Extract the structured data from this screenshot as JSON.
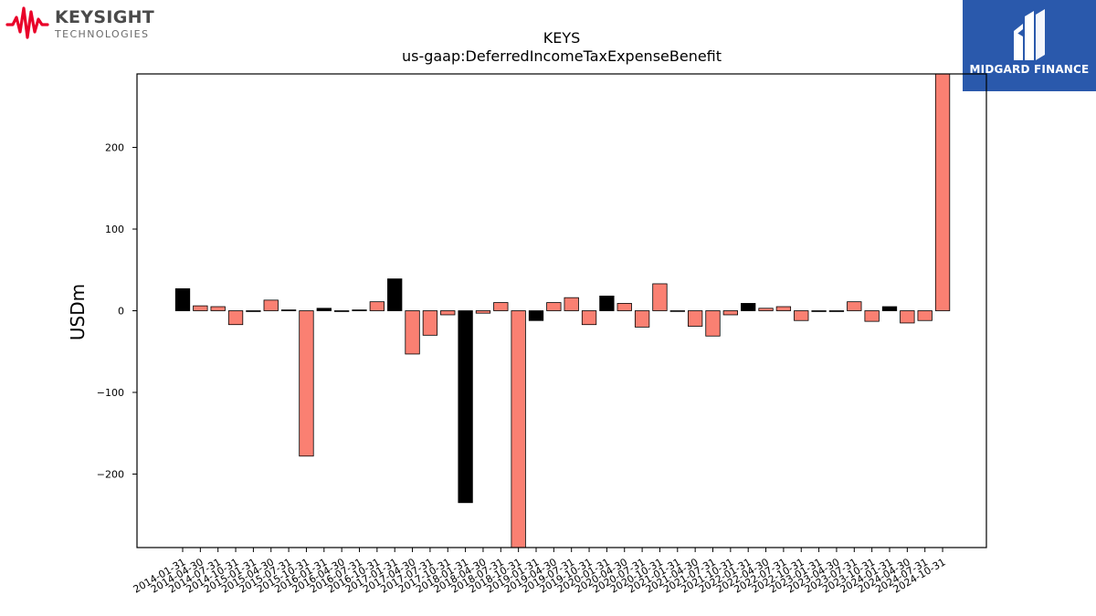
{
  "header": {
    "left_logo": {
      "brand": "KEYSIGHT",
      "sub": "TECHNOLOGIES",
      "accent": "#e90029"
    },
    "right_logo": {
      "name": "MIDGARD FINANCE",
      "background": "#2a59ac"
    }
  },
  "chart_data": {
    "type": "bar",
    "title": "KEYS",
    "subtitle": "us-gaap:DeferredIncomeTaxExpenseBenefit",
    "ylabel": "USDm",
    "xlabel": "",
    "ylim": [
      -290,
      290
    ],
    "yticks": [
      -200,
      -100,
      0,
      100,
      200
    ],
    "ytick_labels": [
      "−200",
      "−100",
      "0",
      "100",
      "200"
    ],
    "grid": false,
    "legend": "none",
    "colors": {
      "salmon": "#fa8072",
      "black": "#000000"
    },
    "categories": [
      "2014-01-31",
      "2014-04-30",
      "2014-07-31",
      "2014-10-31",
      "2015-01-31",
      "2015-04-30",
      "2015-07-31",
      "2015-10-31",
      "2016-01-31",
      "2016-04-30",
      "2016-07-31",
      "2016-10-31",
      "2017-01-31",
      "2017-04-30",
      "2017-07-31",
      "2017-10-31",
      "2018-01-31",
      "2018-04-30",
      "2018-07-31",
      "2018-10-31",
      "2019-01-31",
      "2019-04-30",
      "2019-07-31",
      "2019-10-31",
      "2020-01-31",
      "2020-04-30",
      "2020-07-31",
      "2020-10-31",
      "2021-01-31",
      "2021-04-30",
      "2021-07-31",
      "2021-10-31",
      "2022-01-31",
      "2022-04-30",
      "2022-07-31",
      "2022-10-31",
      "2023-01-31",
      "2023-04-30",
      "2023-07-31",
      "2023-10-31",
      "2024-01-31",
      "2024-04-30",
      "2024-07-31",
      "2024-10-31"
    ],
    "values": [
      27,
      6,
      5,
      -17,
      -1,
      13,
      1,
      -178,
      3,
      -1,
      1,
      11,
      39,
      -53,
      -30,
      -5,
      -235,
      -3,
      10,
      -290,
      -12,
      10,
      16,
      -17,
      18,
      9,
      -20,
      33,
      0,
      -19,
      -31,
      -5,
      9,
      3,
      5,
      -12,
      -1,
      -1,
      11,
      -13,
      5,
      -15,
      -12,
      290
    ],
    "bar_colors": [
      "black",
      "salmon",
      "salmon",
      "salmon",
      "black",
      "salmon",
      "black",
      "salmon",
      "black",
      "black",
      "black",
      "salmon",
      "black",
      "salmon",
      "salmon",
      "salmon",
      "black",
      "salmon",
      "salmon",
      "salmon",
      "black",
      "salmon",
      "salmon",
      "salmon",
      "black",
      "salmon",
      "salmon",
      "salmon",
      "black",
      "salmon",
      "salmon",
      "salmon",
      "black",
      "salmon",
      "salmon",
      "salmon",
      "black",
      "black",
      "salmon",
      "salmon",
      "black",
      "salmon",
      "salmon",
      "salmon"
    ]
  }
}
